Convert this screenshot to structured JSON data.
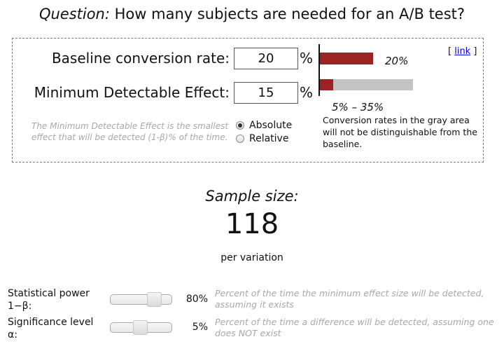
{
  "header": {
    "question_label": "Question:",
    "question_text": "How many subjects are needed for an A/B test?"
  },
  "inputs": {
    "baseline": {
      "label": "Baseline conversion rate:",
      "value": "20",
      "unit": "%"
    },
    "mde": {
      "label": "Minimum Detectable Effect:",
      "value": "15",
      "unit": "%"
    }
  },
  "link": {
    "open": "[",
    "text": "link",
    "close": "]"
  },
  "chart": {
    "baseline_label": "20%",
    "range_label": "5% – 35%",
    "baseline_fraction": 0.2,
    "range_low_fraction": 0.05,
    "range_high_fraction": 0.35,
    "colors": {
      "bar": "#9b2323",
      "gray": "#c3c3c3"
    }
  },
  "mde_explanation": "The Minimum Detectable Effect is the smallest effect that will be detected (1-β)% of the time.",
  "radio": {
    "absolute": "Absolute",
    "relative": "Relative",
    "selected": "Absolute"
  },
  "gray_note": "Conversion rates in the gray area will not be distinguishable from the baseline.",
  "result": {
    "title": "Sample size:",
    "value": "118",
    "unit": "per variation"
  },
  "params": {
    "power": {
      "label_line1": "Statistical power",
      "label_line2": "1−β:",
      "value": "80%",
      "slider_fraction": 0.8,
      "description": "Percent of the time the minimum effect size will be detected, assuming it exists"
    },
    "significance": {
      "label_line1": "Significance level",
      "label_line2": "α:",
      "value": "5%",
      "slider_fraction": 0.05,
      "description": "Percent of the time a difference will be detected, assuming one does NOT exist"
    }
  }
}
